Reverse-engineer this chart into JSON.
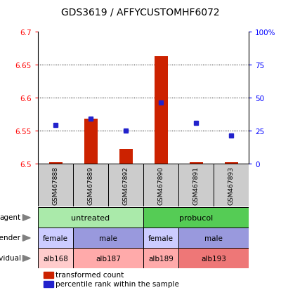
{
  "title": "GDS3619 / AFFYCUSTOMHF6072",
  "samples": [
    "GSM467888",
    "GSM467889",
    "GSM467892",
    "GSM467890",
    "GSM467891",
    "GSM467893"
  ],
  "red_values": [
    6.502,
    6.568,
    6.522,
    6.662,
    6.502,
    6.502
  ],
  "blue_values": [
    6.558,
    6.568,
    6.55,
    6.592,
    6.562,
    6.542
  ],
  "ylim_left": [
    6.5,
    6.7
  ],
  "ylim_right": [
    0,
    100
  ],
  "yticks_left": [
    6.5,
    6.55,
    6.6,
    6.65,
    6.7
  ],
  "yticks_right": [
    0,
    25,
    50,
    75,
    100
  ],
  "ytick_labels_left": [
    "6.5",
    "6.55",
    "6.6",
    "6.65",
    "6.7"
  ],
  "ytick_labels_right": [
    "0",
    "25",
    "50",
    "75",
    "100%"
  ],
  "red_base": 6.5,
  "gridlines": [
    6.55,
    6.6,
    6.65
  ],
  "agent_row": {
    "groups": [
      {
        "label": "untreated",
        "start": 0,
        "end": 3,
        "color": "#AAEAAA"
      },
      {
        "label": "probucol",
        "start": 3,
        "end": 6,
        "color": "#55CC55"
      }
    ]
  },
  "gender_row": {
    "groups": [
      {
        "label": "female",
        "start": 0,
        "end": 1,
        "color": "#CCCCFF"
      },
      {
        "label": "male",
        "start": 1,
        "end": 3,
        "color": "#9999DD"
      },
      {
        "label": "female",
        "start": 3,
        "end": 4,
        "color": "#CCCCFF"
      },
      {
        "label": "male",
        "start": 4,
        "end": 6,
        "color": "#9999DD"
      }
    ]
  },
  "individual_row": {
    "groups": [
      {
        "label": "alb168",
        "start": 0,
        "end": 1,
        "color": "#FFCCCC"
      },
      {
        "label": "alb187",
        "start": 1,
        "end": 3,
        "color": "#FFAAAA"
      },
      {
        "label": "alb189",
        "start": 3,
        "end": 4,
        "color": "#FFAAAA"
      },
      {
        "label": "alb193",
        "start": 4,
        "end": 6,
        "color": "#EE7777"
      }
    ]
  },
  "bar_color_red": "#CC2200",
  "bar_color_blue": "#2222CC",
  "sample_bg": "#CCCCCC"
}
